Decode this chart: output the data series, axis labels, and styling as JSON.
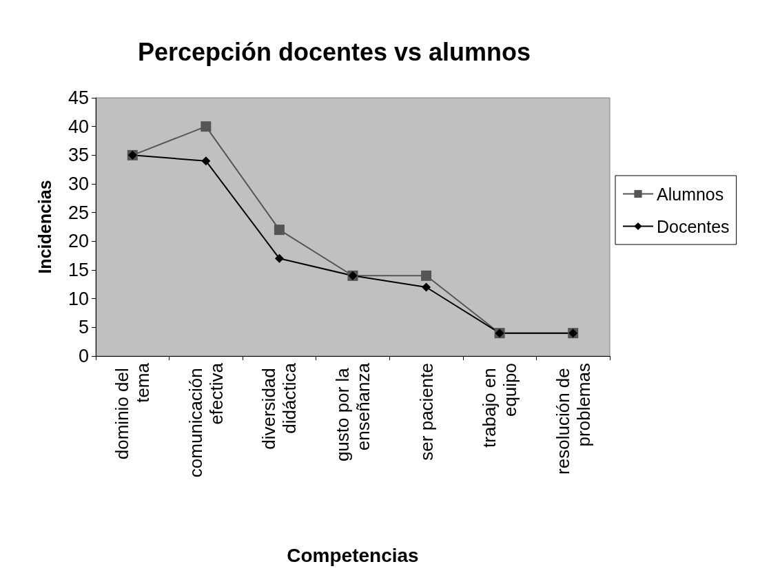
{
  "chart_data": {
    "type": "line",
    "title": "Percepción docentes vs alumnos",
    "xlabel": "Competencias",
    "ylabel": "Incidencias",
    "categories": [
      "dominio del tema",
      "comunicación efectiva",
      "diversidad didáctica",
      "gusto por la enseñanza",
      "ser paciente",
      "trabajo en equipo",
      "resolución de problemas"
    ],
    "series": [
      {
        "name": "Alumnos",
        "color": "#555555",
        "marker": "square",
        "values": [
          35,
          40,
          22,
          14,
          14,
          4,
          4
        ]
      },
      {
        "name": "Docentes",
        "color": "#000000",
        "marker": "diamond",
        "values": [
          35,
          34,
          17,
          14,
          12,
          4,
          4
        ]
      }
    ],
    "ylim": [
      0,
      45
    ],
    "yticks": [
      0,
      5,
      10,
      15,
      20,
      25,
      30,
      35,
      40,
      45
    ],
    "grid": false,
    "legend": "right",
    "line_style": "solid"
  }
}
